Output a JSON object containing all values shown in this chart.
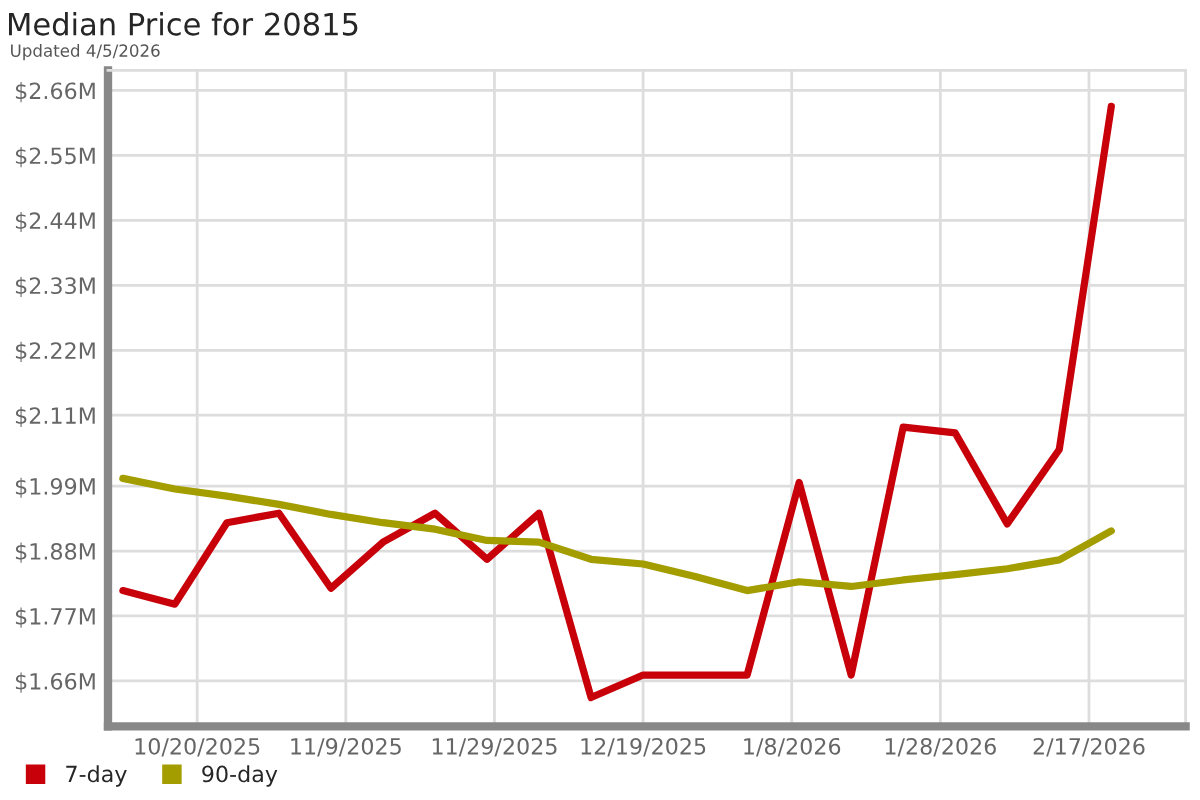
{
  "chart_data": {
    "type": "line",
    "title": "Median Price for 20815",
    "subtitle": "Updated 4/5/2026",
    "x": [
      "2025-10-10",
      "2025-10-17",
      "2025-10-24",
      "2025-10-31",
      "2025-11-07",
      "2025-11-14",
      "2025-11-21",
      "2025-11-28",
      "2025-12-05",
      "2025-12-12",
      "2025-12-19",
      "2025-12-26",
      "2026-01-02",
      "2026-01-09",
      "2026-01-16",
      "2026-01-23",
      "2026-01-30",
      "2026-02-06",
      "2026-02-13",
      "2026-02-20"
    ],
    "series": [
      {
        "name": "7-day",
        "color": "#c8000a",
        "values": [
          1.813,
          1.79,
          1.928,
          1.944,
          1.817,
          1.895,
          1.944,
          1.866,
          1.944,
          1.632,
          1.67,
          1.67,
          1.67,
          1.996,
          1.67,
          2.09,
          2.08,
          1.926,
          2.052,
          2.633
        ]
      },
      {
        "name": "90-day",
        "color": "#a39d00",
        "values": [
          2.003,
          1.985,
          1.973,
          1.959,
          1.942,
          1.928,
          1.917,
          1.898,
          1.895,
          1.866,
          1.858,
          1.837,
          1.813,
          1.828,
          1.82,
          1.831,
          1.84,
          1.85,
          1.865,
          1.914
        ]
      }
    ],
    "xlim": [
      "2025-10-08",
      "2026-03-02"
    ],
    "xticks": [
      {
        "value": "2025-10-20",
        "label": "10/20/2025"
      },
      {
        "value": "2025-11-09",
        "label": "11/9/2025"
      },
      {
        "value": "2025-11-29",
        "label": "11/29/2025"
      },
      {
        "value": "2025-12-19",
        "label": "12/19/2025"
      },
      {
        "value": "2026-01-08",
        "label": "1/8/2026"
      },
      {
        "value": "2026-01-28",
        "label": "1/28/2026"
      },
      {
        "value": "2026-02-17",
        "label": "2/17/2026"
      }
    ],
    "ylim": [
      1.583,
      2.694
    ],
    "yticks": [
      {
        "value": 1.66,
        "label": "$1.66M"
      },
      {
        "value": 1.77,
        "label": "$1.77M"
      },
      {
        "value": 1.88,
        "label": "$1.88M"
      },
      {
        "value": 1.99,
        "label": "$1.99M"
      },
      {
        "value": 2.11,
        "label": "$2.11M"
      },
      {
        "value": 2.22,
        "label": "$2.22M"
      },
      {
        "value": 2.33,
        "label": "$2.33M"
      },
      {
        "value": 2.44,
        "label": "$2.44M"
      },
      {
        "value": 2.55,
        "label": "$2.55M"
      },
      {
        "value": 2.66,
        "label": "$2.66M"
      }
    ],
    "grid": true,
    "legend": "bottom left",
    "marker": "none",
    "line_style": "solid"
  }
}
